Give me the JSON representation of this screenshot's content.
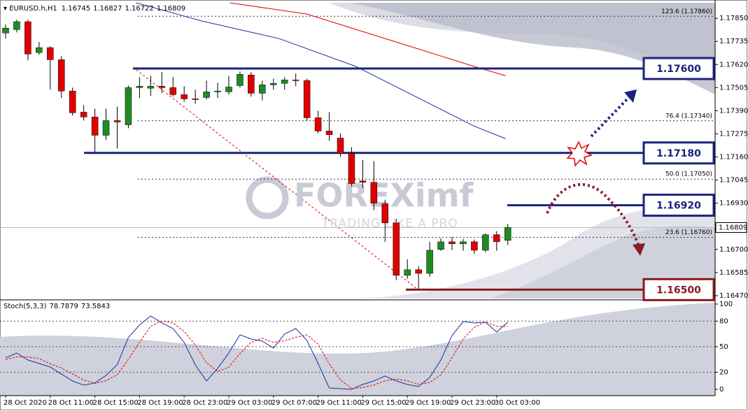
{
  "chart_data": {
    "type": "candlestick",
    "symbol": "EURUSD.h,H1",
    "categories": [
      "28 Oct 2020",
      null,
      null,
      null,
      "28 Oct 11:00",
      null,
      null,
      null,
      "28 Oct 15:00",
      null,
      null,
      null,
      "28 Oct 19:00",
      null,
      null,
      null,
      "28 Oct 23:00",
      null,
      null,
      null,
      "29 Oct 03:00",
      null,
      null,
      null,
      "29 Oct 07:00",
      null,
      null,
      null,
      "29 Oct 11:00",
      null,
      null,
      null,
      "29 Oct 15:00",
      null,
      null,
      null,
      "29 Oct 19:00",
      null,
      null,
      null,
      "29 Oct 23:00",
      null,
      null,
      null,
      "30 Oct 03:00",
      null
    ],
    "open": [
      1.17777,
      1.17794,
      1.17833,
      1.17679,
      1.17704,
      1.17644,
      1.17488,
      1.17383,
      1.17359,
      1.17268,
      1.17341,
      1.1732,
      1.17505,
      1.17502,
      1.17512,
      1.17505,
      1.1747,
      1.17449,
      1.17456,
      1.17484,
      1.17484,
      1.17515,
      1.17568,
      1.17477,
      1.17519,
      1.17526,
      1.17543,
      1.1754,
      1.17355,
      1.17289,
      1.17254,
      1.17177,
      1.17041,
      1.17034,
      1.16927,
      1.16832,
      1.16571,
      1.16599,
      1.16581,
      1.167,
      1.16738,
      1.16728,
      1.16738,
      1.16696,
      1.16773,
      1.16745
    ],
    "high": [
      1.17819,
      1.17843,
      1.17843,
      1.17732,
      1.17711,
      1.17662,
      1.17505,
      1.17418,
      1.174,
      1.174,
      1.17411,
      1.17515,
      1.17557,
      1.17564,
      1.17582,
      1.17557,
      1.17512,
      1.17495,
      1.1754,
      1.17529,
      1.17564,
      1.17585,
      1.17582,
      1.1754,
      1.1755,
      1.17557,
      1.17575,
      1.1755,
      1.1739,
      1.17383,
      1.17278,
      1.17209,
      1.17146,
      1.17139,
      1.16947,
      1.16853,
      1.16651,
      1.16616,
      1.16738,
      1.16756,
      1.16763,
      1.16752,
      1.16749,
      1.1678,
      1.16791,
      1.16827
    ],
    "low": [
      1.17749,
      1.1778,
      1.17641,
      1.17669,
      1.17495,
      1.17453,
      1.17366,
      1.17341,
      1.17181,
      1.17244,
      1.17202,
      1.17303,
      1.17453,
      1.17463,
      1.17477,
      1.1746,
      1.17435,
      1.17425,
      1.17446,
      1.17453,
      1.1747,
      1.17505,
      1.1746,
      1.17442,
      1.17495,
      1.17495,
      1.17512,
      1.17341,
      1.17278,
      1.1724,
      1.1716,
      1.17014,
      1.17007,
      1.16895,
      1.16738,
      1.16547,
      1.16554,
      1.16505,
      1.16564,
      1.16693,
      1.16696,
      1.16693,
      1.16679,
      1.16686,
      1.16693,
      1.16722
    ],
    "close": [
      1.17801,
      1.17833,
      1.17672,
      1.17704,
      1.17644,
      1.17488,
      1.1738,
      1.17359,
      1.17268,
      1.17341,
      1.17334,
      1.17505,
      1.17512,
      1.17512,
      1.17505,
      1.1747,
      1.17449,
      1.17446,
      1.17484,
      1.17488,
      1.17508,
      1.17571,
      1.17477,
      1.17519,
      1.17526,
      1.17543,
      1.1754,
      1.17355,
      1.17289,
      1.17271,
      1.17177,
      1.17028,
      1.17034,
      1.1693,
      1.16832,
      1.16571,
      1.16599,
      1.16581,
      1.16696,
      1.16738,
      1.16728,
      1.16738,
      1.16696,
      1.16773,
      1.16738,
      1.16809
    ],
    "up_color": "#1f8b24",
    "down_color": "#e00000",
    "ylim": [
      1.16456,
      1.17927
    ],
    "yticks": [
      {
        "value": 1.1785,
        "label": "1.17850"
      },
      {
        "value": 1.17735,
        "label": "1.17735"
      },
      {
        "value": 1.1762,
        "label": "1.17620"
      },
      {
        "value": 1.17505,
        "label": "1.17505"
      },
      {
        "value": 1.1739,
        "label": "1.17390"
      },
      {
        "value": 1.17275,
        "label": "1.17275"
      },
      {
        "value": 1.1716,
        "label": "1.17160"
      },
      {
        "value": 1.17045,
        "label": "1.17045"
      },
      {
        "value": 1.1693,
        "label": "1.16930"
      },
      {
        "value": 1.167,
        "label": "1.16700"
      },
      {
        "value": 1.16585,
        "label": "1.16585"
      },
      {
        "value": 1.1647,
        "label": "1.16470"
      }
    ],
    "moving_averages": [
      {
        "color": "#1c2fa0",
        "x": [
          11.7,
          17.6,
          24.5,
          31.4,
          37,
          42,
          44.8
        ],
        "values": [
          1.17927,
          1.17836,
          1.17749,
          1.1761,
          1.17453,
          1.17313,
          1.17251
        ]
      },
      {
        "color": "#e00000",
        "x": [
          20.1,
          27,
          32,
          37,
          42,
          44.8
        ],
        "values": [
          1.17927,
          1.17871,
          1.17784,
          1.17697,
          1.1761,
          1.17564
        ]
      }
    ],
    "levels": [
      {
        "value": 1.176,
        "label": "1.17600",
        "color": "#1a237e"
      },
      {
        "value": 1.1718,
        "label": "1.17180",
        "color": "#1a237e"
      },
      {
        "value": 1.1692,
        "label": "1.16920",
        "color": "#1a237e"
      },
      {
        "value": 1.165,
        "label": "1.16500",
        "color": "#8b1a1a"
      }
    ],
    "fibonacci": [
      {
        "value": 1.1786,
        "label": "123.6 (1.17860)"
      },
      {
        "value": 1.1734,
        "label": "76.4 (1.17340)"
      },
      {
        "value": 1.1705,
        "label": "50.0 (1.17050)"
      },
      {
        "value": 1.1676,
        "label": "23.6 (1.16760)"
      }
    ],
    "watermark": {
      "title": "FOREXimf",
      "subtitle": "TRADING LIKE A PRO"
    },
    "indicator": {
      "type": "line",
      "title": "Stoch(5,3,3)",
      "ylim": [
        -7.4,
        103.3
      ],
      "yticks": [
        100,
        80,
        50,
        20,
        0
      ],
      "series": [
        {
          "color": "#1c2fa0",
          "dashed": false,
          "values": [
            36.9,
            42.6,
            34.4,
            30.3,
            26.2,
            18,
            9.8,
            4.9,
            7.4,
            16.4,
            28.7,
            60.7,
            75.4,
            86.1,
            77.9,
            71.3,
            54.9,
            28.7,
            9.8,
            24.6,
            42.6,
            63.9,
            59,
            56.6,
            48.4,
            64.8,
            71.3,
            57.4,
            30.3,
            1.6,
            0.8,
            0,
            5.7,
            9.8,
            15.6,
            9.8,
            5.7,
            3.3,
            13.9,
            34.4,
            63.1,
            79.5,
            77.9,
            78.7,
            67.2,
            78.7879
          ]
        },
        {
          "color": "#e00000",
          "dashed": true,
          "values": [
            35,
            38,
            38,
            36,
            30,
            25,
            18,
            11,
            7,
            10,
            17,
            35,
            55,
            74,
            80,
            78,
            68,
            52,
            31,
            21,
            26,
            42,
            55,
            60,
            55,
            57,
            61,
            64,
            53,
            30,
            11,
            1,
            2,
            5,
            10,
            12,
            10,
            6,
            8,
            17,
            37,
            59,
            73,
            79,
            74,
            73.5843
          ]
        }
      ]
    }
  }
}
